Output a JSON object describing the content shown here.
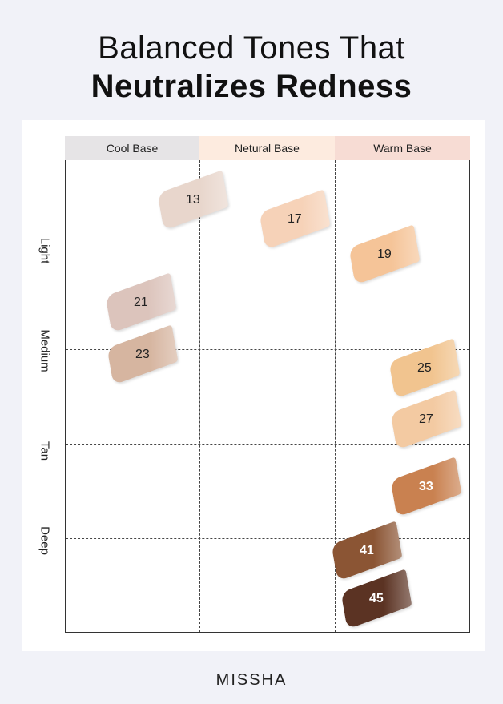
{
  "title": {
    "line1": "Balanced Tones That",
    "line2": "Neutralizes Redness"
  },
  "columns": [
    {
      "label": "Cool Base",
      "color": "#e6e4e6"
    },
    {
      "label": "Netural Base",
      "color": "#fdebdf"
    },
    {
      "label": "Warm Base",
      "color": "#f7dcd4"
    }
  ],
  "rows": [
    "Light",
    "Medium",
    "Tan",
    "Deep"
  ],
  "shades": [
    {
      "label": "13",
      "color": "#e8d6cc",
      "base": "Cool Base"
    },
    {
      "label": "17",
      "color": "#f6d2b8",
      "base": "Netural Base"
    },
    {
      "label": "19",
      "color": "#f5c498",
      "base": "Warm Base"
    },
    {
      "label": "21",
      "color": "#dcc4bc",
      "base": "Cool Base"
    },
    {
      "label": "23",
      "color": "#d6b5a0",
      "base": "Cool Base"
    },
    {
      "label": "25",
      "color": "#f1c48f",
      "base": "Warm Base"
    },
    {
      "label": "27",
      "color": "#f3caa2",
      "base": "Warm Base"
    },
    {
      "label": "33",
      "color": "#c98150",
      "base": "Warm Base"
    },
    {
      "label": "41",
      "color": "#8b5534",
      "base": "Warm Base"
    },
    {
      "label": "45",
      "color": "#5b3323",
      "base": "Warm Base"
    }
  ],
  "brand": "MISSHA"
}
